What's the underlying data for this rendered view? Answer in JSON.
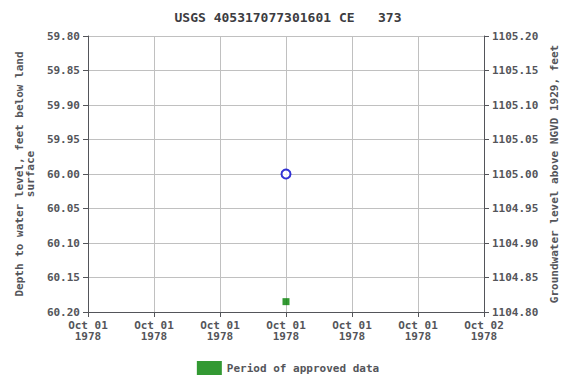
{
  "chart_data": {
    "type": "scatter",
    "title": "USGS 405317077301601 CE   373",
    "ylabel": "Depth to water level, feet below land\nsurface",
    "y2label": "Groundwater level above NGVD 1929, feet",
    "categories": [
      "Oct 01\n1978",
      "Oct 01\n1978",
      "Oct 01\n1978",
      "Oct 01\n1978",
      "Oct 01\n1978",
      "Oct 01\n1978",
      "Oct 02\n1978"
    ],
    "series": [
      {
        "color": "#0000cc",
        "marker": "circle",
        "values": [
          null,
          null,
          null,
          60.0,
          null,
          null,
          null
        ]
      },
      {
        "name": "Period of approved data",
        "color": "#008000",
        "marker": "square",
        "values": [
          null,
          null,
          null,
          60.185,
          null,
          null,
          null
        ]
      }
    ],
    "ylim": [
      60.2,
      59.8
    ],
    "yticks": [
      {
        "value": 59.8,
        "label": "59.80"
      },
      {
        "value": 59.85,
        "label": "59.85"
      },
      {
        "value": 59.9,
        "label": "59.90"
      },
      {
        "value": 59.95,
        "label": "59.95"
      },
      {
        "value": 60.0,
        "label": "60.00"
      },
      {
        "value": 60.05,
        "label": "60.05"
      },
      {
        "value": 60.1,
        "label": "60.10"
      },
      {
        "value": 60.15,
        "label": "60.15"
      },
      {
        "value": 60.2,
        "label": "60.20"
      }
    ],
    "y2lim": [
      1104.8,
      1105.2
    ],
    "y2ticks": [
      {
        "value": 1104.8,
        "label": "1104.80"
      },
      {
        "value": 1104.85,
        "label": "1104.85"
      },
      {
        "value": 1104.9,
        "label": "1104.90"
      },
      {
        "value": 1104.95,
        "label": "1104.95"
      },
      {
        "value": 1105.0,
        "label": "1105.00"
      },
      {
        "value": 1105.05,
        "label": "1105.05"
      },
      {
        "value": 1105.1,
        "label": "1105.10"
      },
      {
        "value": 1105.15,
        "label": "1105.15"
      },
      {
        "value": 1105.2,
        "label": "1105.20"
      }
    ],
    "grid": true,
    "legend": "bottom"
  }
}
